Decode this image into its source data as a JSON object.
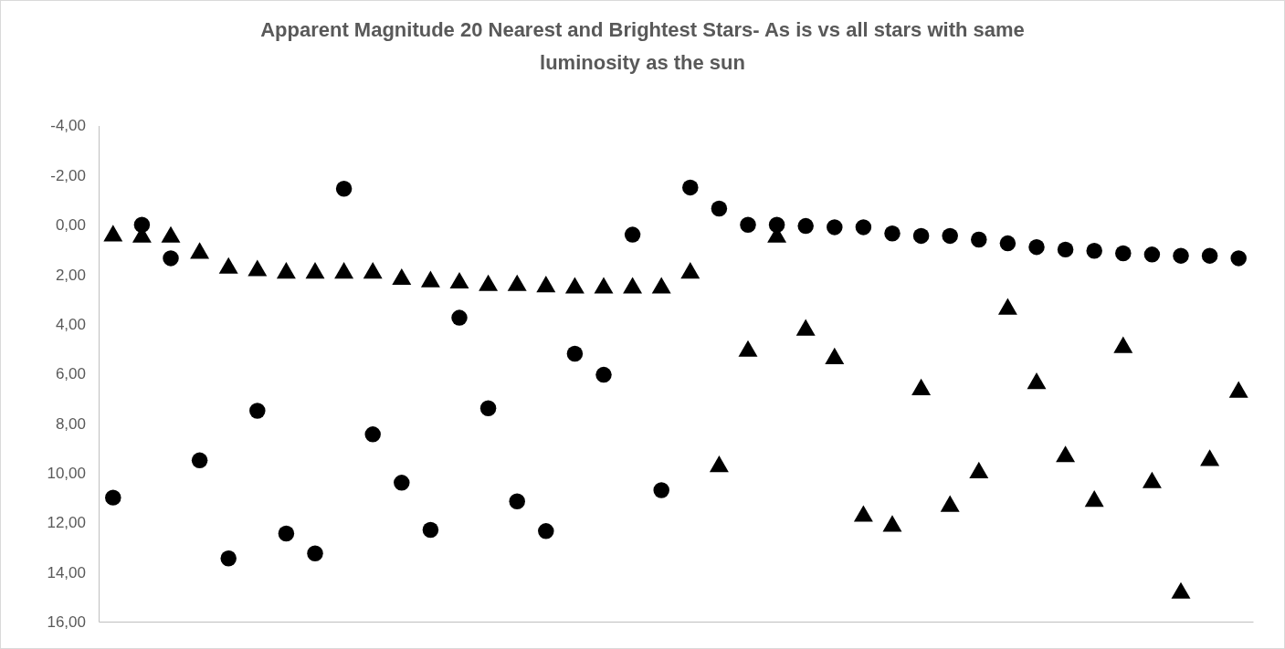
{
  "chart_data": {
    "type": "scatter",
    "title": "Apparent Magnitude 20 Nearest and Brightest Stars- As is vs all stars with same luminosity as the sun",
    "categories": [
      null,
      null,
      null,
      null,
      null,
      null,
      null,
      null,
      null,
      null,
      null,
      null,
      null,
      null,
      null,
      null,
      null,
      null,
      null,
      null,
      null,
      null,
      null,
      null,
      null,
      null,
      null,
      null,
      null,
      null,
      null,
      null,
      null,
      null,
      null,
      null,
      null,
      null,
      null,
      null
    ],
    "ylim": [
      16,
      -4
    ],
    "yticks": [
      {
        "value": -4,
        "label": "-4,00"
      },
      {
        "value": -2,
        "label": "-2,00"
      },
      {
        "value": 0,
        "label": "0,00"
      },
      {
        "value": 2,
        "label": "2,00"
      },
      {
        "value": 4,
        "label": "4,00"
      },
      {
        "value": 6,
        "label": "6,00"
      },
      {
        "value": 8,
        "label": "8,00"
      },
      {
        "value": 10,
        "label": "10,00"
      },
      {
        "value": 12,
        "label": "12,00"
      },
      {
        "value": 14,
        "label": "14,00"
      },
      {
        "value": 16,
        "label": "16,00"
      }
    ],
    "grid": false,
    "tick_labels": "y",
    "series": [
      {
        "color": "#000000",
        "marker": "circle",
        "values": [
          11.0,
          0.0,
          1.35,
          9.5,
          13.45,
          7.5,
          12.45,
          13.25,
          -1.45,
          8.45,
          10.4,
          12.3,
          3.75,
          7.4,
          11.15,
          12.35,
          5.2,
          6.05,
          0.4,
          10.7,
          -1.5,
          -0.65,
          0.0,
          0.0,
          0.05,
          0.1,
          0.1,
          0.35,
          0.45,
          0.45,
          0.6,
          0.75,
          0.9,
          1.0,
          1.05,
          1.15,
          1.2,
          1.25,
          1.25,
          1.35
        ]
      },
      {
        "color": "#000000",
        "marker": "triangle",
        "values": [
          0.45,
          0.5,
          0.5,
          1.15,
          1.75,
          1.85,
          1.95,
          1.95,
          1.95,
          1.95,
          2.2,
          2.3,
          2.35,
          2.45,
          2.45,
          2.5,
          2.55,
          2.55,
          2.55,
          2.55,
          1.95,
          9.75,
          5.1,
          0.5,
          4.25,
          5.4,
          11.75,
          12.15,
          6.65,
          11.35,
          10.0,
          3.4,
          6.4,
          9.35,
          11.15,
          4.95,
          10.4,
          14.85,
          9.5,
          6.75
        ]
      }
    ]
  }
}
